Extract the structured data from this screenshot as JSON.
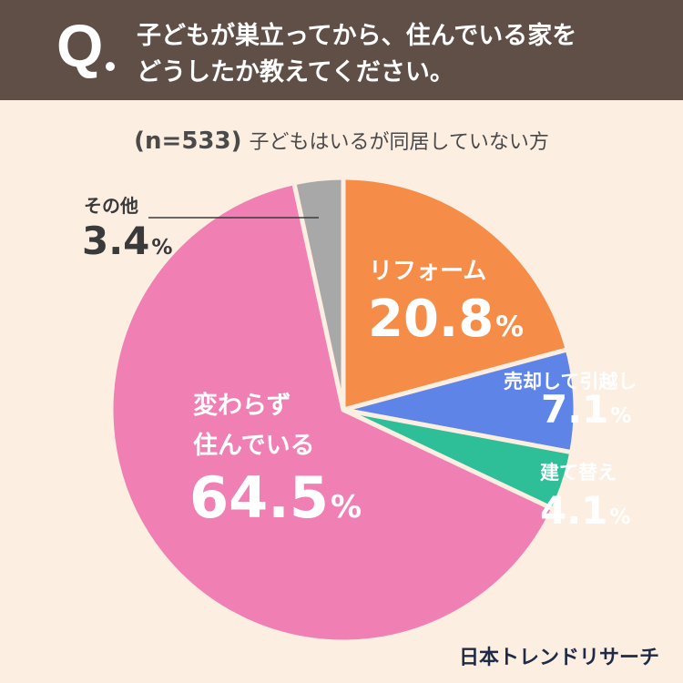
{
  "header": {
    "q_mark": "Q",
    "question_line1": "子どもが巣立ってから、住んでいる家を",
    "question_line2": "どうしたか教えてください。"
  },
  "sample": {
    "n_label": "(n=533)",
    "description": "子どもはいるが同居していない方"
  },
  "chart_data": {
    "type": "pie",
    "title": "子どもが巣立ってから、住んでいる家をどうしたか教えてください。",
    "n": 533,
    "unit": "%",
    "start_angle_deg": 0,
    "direction": "clockwise",
    "slices": [
      {
        "label": "リフォーム",
        "value": 20.8,
        "color": "#f58d49"
      },
      {
        "label": "売却して引越し",
        "value": 7.1,
        "color": "#5e84e8"
      },
      {
        "label": "建て替え",
        "value": 4.1,
        "color": "#2ebf98"
      },
      {
        "label": "変わらず住んでいる",
        "value": 64.5,
        "color": "#f07fb4"
      },
      {
        "label": "その他",
        "value": 3.4,
        "color": "#a8a8a8"
      }
    ]
  },
  "labels": {
    "reform_name": "リフォーム",
    "reform_value": "20.8",
    "sell_name": "売却して引越し",
    "sell_value": "7.1",
    "rebuild_name": "建て替え",
    "rebuild_value": "4.1",
    "same_name_line1": "変わらず",
    "same_name_line2": "住んでいる",
    "same_value": "64.5",
    "other_name": "その他",
    "other_value": "3.4",
    "pct": "%"
  },
  "brand": "日本トレンドリサーチ"
}
